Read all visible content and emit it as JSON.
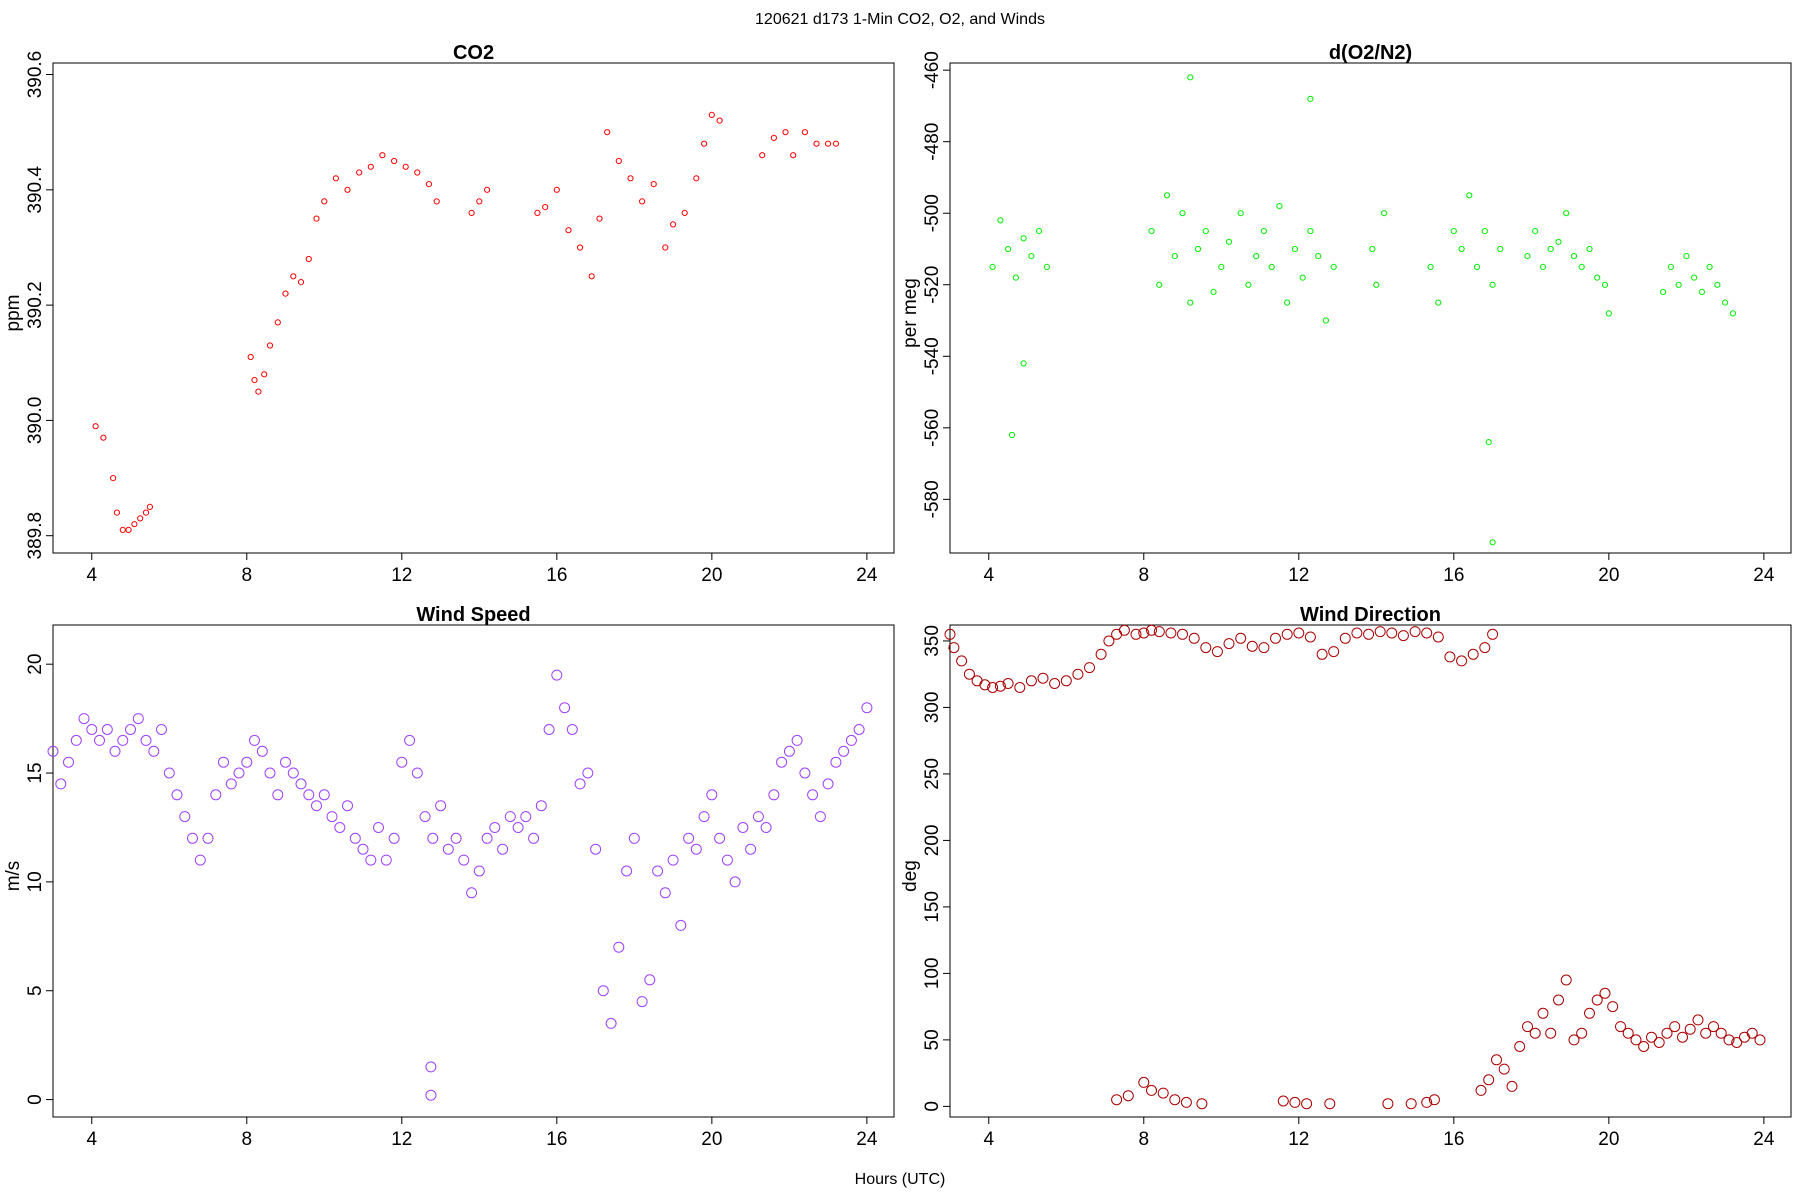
{
  "figure": {
    "title": "120621   d173   1-Min CO2, O2, and Winds",
    "xlabel": "Hours (UTC)"
  },
  "chart_data": [
    {
      "type": "scatter",
      "title": "CO2",
      "xlabel": "Hours (UTC)",
      "ylabel": "ppm",
      "xlim": [
        3,
        24.7
      ],
      "ylim": [
        389.77,
        390.62
      ],
      "xticks": [
        4,
        8,
        12,
        16,
        20,
        24
      ],
      "yticks": [
        389.8,
        390.0,
        390.2,
        390.4,
        390.6
      ],
      "ytick_labels": [
        "389.8",
        "390.0",
        "390.2",
        "390.4",
        "390.6"
      ],
      "marker_color": "#ff0000",
      "marker": "open-circle-small",
      "grid": false,
      "series": [
        {
          "x": [
            4.1,
            4.3,
            4.55,
            4.65,
            4.8,
            4.95,
            5.1,
            5.25,
            5.4,
            5.5,
            8.1,
            8.2,
            8.3,
            8.45,
            8.6,
            8.8,
            9.0,
            9.2,
            9.4,
            9.6,
            9.8,
            10.0,
            10.3,
            10.6,
            10.9,
            11.2,
            11.5,
            11.8,
            12.1,
            12.4,
            12.7,
            12.9,
            13.8,
            14.0,
            14.2,
            15.5,
            15.7,
            16.0,
            16.3,
            16.6,
            16.9,
            17.1,
            17.3,
            17.6,
            17.9,
            18.2,
            18.5,
            18.8,
            19.0,
            19.3,
            19.6,
            19.8,
            20.0,
            20.2,
            21.3,
            21.6,
            21.9,
            22.1,
            22.4,
            22.7,
            23.0,
            23.2
          ],
          "y": [
            389.99,
            389.97,
            389.9,
            389.84,
            389.81,
            389.81,
            389.82,
            389.83,
            389.84,
            389.85,
            390.11,
            390.07,
            390.05,
            390.08,
            390.13,
            390.17,
            390.22,
            390.25,
            390.24,
            390.28,
            390.35,
            390.38,
            390.42,
            390.4,
            390.43,
            390.44,
            390.46,
            390.45,
            390.44,
            390.43,
            390.41,
            390.38,
            390.36,
            390.38,
            390.4,
            390.36,
            390.37,
            390.4,
            390.33,
            390.3,
            390.25,
            390.35,
            390.5,
            390.45,
            390.42,
            390.38,
            390.41,
            390.3,
            390.34,
            390.36,
            390.42,
            390.48,
            390.53,
            390.52,
            390.46,
            390.49,
            390.5,
            390.46,
            390.5,
            390.48,
            390.48,
            390.48
          ]
        }
      ]
    },
    {
      "type": "scatter",
      "title": "d(O2/N2)",
      "xlabel": "Hours (UTC)",
      "ylabel": "per meg",
      "xlim": [
        3,
        24.7
      ],
      "ylim": [
        -595,
        -458
      ],
      "xticks": [
        4,
        8,
        12,
        16,
        20,
        24
      ],
      "yticks": [
        -460,
        -480,
        -500,
        -520,
        -540,
        -560,
        -580
      ],
      "ytick_labels": [
        "-460",
        "-480",
        "-500",
        "-520",
        "-540",
        "-560",
        "-580"
      ],
      "marker_color": "#00ee00",
      "marker": "open-circle-small",
      "grid": false,
      "series": [
        {
          "x": [
            4.1,
            4.3,
            4.5,
            4.7,
            4.9,
            5.1,
            5.3,
            5.5,
            4.6,
            4.9,
            8.2,
            8.4,
            8.6,
            8.8,
            9.0,
            9.2,
            9.4,
            9.6,
            9.8,
            10.0,
            10.2,
            10.5,
            10.7,
            10.9,
            11.1,
            11.3,
            11.5,
            11.7,
            11.9,
            12.1,
            12.3,
            12.5,
            12.7,
            12.9,
            13.9,
            14.0,
            14.2,
            15.4,
            15.6,
            16.0,
            16.2,
            16.4,
            16.6,
            16.8,
            17.0,
            17.2,
            17.9,
            18.1,
            18.3,
            18.5,
            18.7,
            18.9,
            19.1,
            19.3,
            19.5,
            19.7,
            19.9,
            20.0,
            21.4,
            21.6,
            21.8,
            22.0,
            22.2,
            22.4,
            22.6,
            22.8,
            23.0,
            23.2,
            16.9,
            17.0,
            9.2,
            12.3
          ],
          "y": [
            -515,
            -502,
            -510,
            -518,
            -507,
            -512,
            -505,
            -515,
            -562,
            -542,
            -505,
            -520,
            -495,
            -512,
            -500,
            -525,
            -510,
            -505,
            -522,
            -515,
            -508,
            -500,
            -520,
            -512,
            -505,
            -515,
            -498,
            -525,
            -510,
            -518,
            -505,
            -512,
            -530,
            -515,
            -510,
            -520,
            -500,
            -515,
            -525,
            -505,
            -510,
            -495,
            -515,
            -505,
            -520,
            -510,
            -512,
            -505,
            -515,
            -510,
            -508,
            -500,
            -512,
            -515,
            -510,
            -518,
            -520,
            -528,
            -522,
            -515,
            -520,
            -512,
            -518,
            -522,
            -515,
            -520,
            -525,
            -528,
            -564,
            -592,
            -462,
            -468
          ]
        }
      ]
    },
    {
      "type": "scatter",
      "title": "Wind Speed",
      "xlabel": "Hours (UTC)",
      "ylabel": "m/s",
      "xlim": [
        3,
        24.7
      ],
      "ylim": [
        -0.8,
        21.8
      ],
      "xticks": [
        4,
        8,
        12,
        16,
        20,
        24
      ],
      "yticks": [
        0,
        5,
        10,
        15,
        20
      ],
      "ytick_labels": [
        "0",
        "5",
        "10",
        "15",
        "20"
      ],
      "marker_color": "#a040ff",
      "marker": "open-circle",
      "grid": false,
      "series": [
        {
          "x": [
            3.0,
            3.2,
            3.4,
            3.6,
            3.8,
            4.0,
            4.2,
            4.4,
            4.6,
            4.8,
            5.0,
            5.2,
            5.4,
            5.6,
            5.8,
            6.0,
            6.2,
            6.4,
            6.6,
            6.8,
            7.0,
            7.2,
            7.4,
            7.6,
            7.8,
            8.0,
            8.2,
            8.4,
            8.6,
            8.8,
            9.0,
            9.2,
            9.4,
            9.6,
            9.8,
            10.0,
            10.2,
            10.4,
            10.6,
            10.8,
            11.0,
            11.2,
            11.4,
            11.6,
            11.8,
            12.0,
            12.2,
            12.4,
            12.6,
            12.8,
            13.0,
            13.2,
            13.4,
            13.6,
            13.8,
            14.0,
            14.2,
            14.4,
            14.6,
            14.8,
            15.0,
            15.2,
            15.4,
            15.6,
            15.8,
            16.0,
            16.2,
            16.4,
            16.6,
            16.8,
            17.0,
            17.2,
            17.4,
            17.6,
            17.8,
            18.0,
            18.2,
            18.4,
            18.6,
            18.8,
            19.0,
            19.2,
            19.4,
            19.6,
            19.8,
            20.0,
            20.2,
            20.4,
            20.6,
            20.8,
            21.0,
            21.2,
            21.4,
            21.6,
            21.8,
            22.0,
            22.2,
            22.4,
            22.6,
            22.8,
            23.0,
            23.2,
            23.4,
            23.6,
            23.8,
            24.0,
            12.75,
            12.75
          ],
          "y": [
            16.0,
            14.5,
            15.5,
            16.5,
            17.5,
            17.0,
            16.5,
            17.0,
            16.0,
            16.5,
            17.0,
            17.5,
            16.5,
            16.0,
            17.0,
            15.0,
            14.0,
            13.0,
            12.0,
            11.0,
            12.0,
            14.0,
            15.5,
            14.5,
            15.0,
            15.5,
            16.5,
            16.0,
            15.0,
            14.0,
            15.5,
            15.0,
            14.5,
            14.0,
            13.5,
            14.0,
            13.0,
            12.5,
            13.5,
            12.0,
            11.5,
            11.0,
            12.5,
            11.0,
            12.0,
            15.5,
            16.5,
            15.0,
            13.0,
            12.0,
            13.5,
            11.5,
            12.0,
            11.0,
            9.5,
            10.5,
            12.0,
            12.5,
            11.5,
            13.0,
            12.5,
            13.0,
            12.0,
            13.5,
            17.0,
            19.5,
            18.0,
            17.0,
            14.5,
            15.0,
            11.5,
            5.0,
            3.5,
            7.0,
            10.5,
            12.0,
            4.5,
            5.5,
            10.5,
            9.5,
            11.0,
            8.0,
            12.0,
            11.5,
            13.0,
            14.0,
            12.0,
            11.0,
            10.0,
            12.5,
            11.5,
            13.0,
            12.5,
            14.0,
            15.5,
            16.0,
            16.5,
            15.0,
            14.0,
            13.0,
            14.5,
            15.5,
            16.0,
            16.5,
            17.0,
            18.0,
            1.5,
            0.2
          ]
        }
      ]
    },
    {
      "type": "scatter",
      "title": "Wind Direction",
      "xlabel": "Hours (UTC)",
      "ylabel": "deg",
      "xlim": [
        3,
        24.7
      ],
      "ylim": [
        -8,
        362
      ],
      "xticks": [
        4,
        8,
        12,
        16,
        20,
        24
      ],
      "yticks": [
        0,
        50,
        100,
        150,
        200,
        250,
        300,
        350
      ],
      "ytick_labels": [
        "0",
        "50",
        "100",
        "150",
        "200",
        "250",
        "300",
        "350"
      ],
      "marker_color": "#aa0000",
      "marker": "open-circle",
      "grid": false,
      "series": [
        {
          "x": [
            3.0,
            3.1,
            3.3,
            3.5,
            3.7,
            3.9,
            4.1,
            4.3,
            4.5,
            4.8,
            5.1,
            5.4,
            5.7,
            6.0,
            6.3,
            6.6,
            6.9,
            7.1,
            7.3,
            7.5,
            7.8,
            8.0,
            8.2,
            8.4,
            8.7,
            9.0,
            9.3,
            9.6,
            9.9,
            10.2,
            10.5,
            10.8,
            11.1,
            11.4,
            11.7,
            12.0,
            12.3,
            12.6,
            12.9,
            13.2,
            13.5,
            13.8,
            14.1,
            14.4,
            14.7,
            15.0,
            15.3,
            15.6,
            15.9,
            16.2,
            16.5,
            16.8,
            17.0,
            7.3,
            7.6,
            8.0,
            8.2,
            8.5,
            8.8,
            9.1,
            9.5,
            11.6,
            11.9,
            12.2,
            12.8,
            14.3,
            14.9,
            15.3,
            15.5,
            16.7,
            16.9,
            17.1,
            17.3,
            17.5,
            17.7,
            17.9,
            18.1,
            18.3,
            18.5,
            18.7,
            18.9,
            19.1,
            19.3,
            19.5,
            19.7,
            19.9,
            20.1,
            20.3,
            20.5,
            20.7,
            20.9,
            21.1,
            21.3,
            21.5,
            21.7,
            21.9,
            22.1,
            22.3,
            22.5,
            22.7,
            22.9,
            23.1,
            23.3,
            23.5,
            23.7,
            23.9
          ],
          "y": [
            355,
            345,
            335,
            325,
            320,
            317,
            315,
            316,
            318,
            315,
            320,
            322,
            318,
            320,
            325,
            330,
            340,
            350,
            355,
            358,
            355,
            356,
            358,
            357,
            356,
            355,
            352,
            345,
            342,
            348,
            352,
            346,
            345,
            352,
            355,
            356,
            353,
            340,
            342,
            352,
            356,
            355,
            357,
            356,
            354,
            357,
            356,
            353,
            338,
            335,
            340,
            345,
            355,
            5,
            8,
            18,
            12,
            10,
            5,
            3,
            2,
            4,
            3,
            2,
            2,
            2,
            2,
            3,
            5,
            12,
            20,
            35,
            28,
            15,
            45,
            60,
            55,
            70,
            55,
            80,
            95,
            50,
            55,
            70,
            80,
            85,
            75,
            60,
            55,
            50,
            45,
            52,
            48,
            55,
            60,
            52,
            58,
            65,
            55,
            60,
            55,
            50,
            48,
            52,
            55,
            50
          ]
        }
      ]
    }
  ]
}
